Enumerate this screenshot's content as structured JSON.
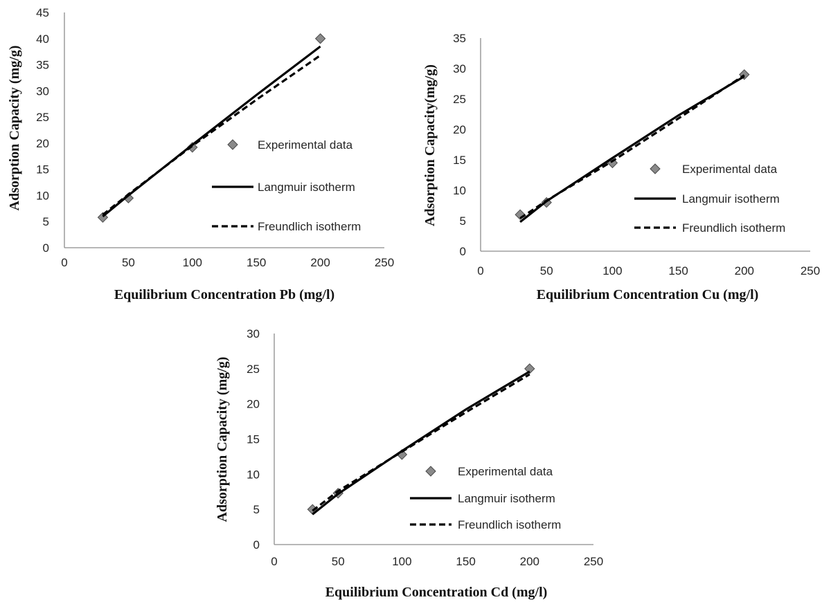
{
  "chart_data": [
    {
      "type": "scatter",
      "xlabel": "Equilibrium Concentration Pb  (mg/l)",
      "ylabel": "Adsorption Capacity (mg/g)",
      "xlim": [
        0,
        250
      ],
      "ylim": [
        0,
        45
      ],
      "xticks": [
        "0",
        "50",
        "100",
        "150",
        "200",
        "250"
      ],
      "yticks": [
        "0",
        "5",
        "10",
        "15",
        "20",
        "25",
        "30",
        "35",
        "40",
        "45"
      ],
      "grid": false,
      "legend_position": "right",
      "series": [
        {
          "name": "Experimental data",
          "kind": "marker",
          "x": [
            30,
            50,
            100,
            200
          ],
          "y": [
            5.8,
            9.5,
            19.2,
            40
          ]
        },
        {
          "name": "Langmuir isotherm",
          "kind": "solid",
          "x": [
            30,
            50,
            100,
            150,
            200
          ],
          "y": [
            6.0,
            10.0,
            19.7,
            29.2,
            38.5
          ]
        },
        {
          "name": "Freundlich isotherm",
          "kind": "dashed",
          "x": [
            30,
            50,
            100,
            150,
            200
          ],
          "y": [
            6.3,
            10.2,
            19.5,
            28.3,
            36.8
          ]
        }
      ]
    },
    {
      "type": "scatter",
      "xlabel": "Equilibrium Concentration Cu (mg/l)",
      "ylabel": "Adsorption Capacity(mg/g)",
      "xlim": [
        0,
        250
      ],
      "ylim": [
        0,
        35
      ],
      "xticks": [
        "0",
        "50",
        "100",
        "150",
        "200",
        "250"
      ],
      "yticks": [
        "0",
        "5",
        "10",
        "15",
        "20",
        "25",
        "30",
        "35"
      ],
      "grid": false,
      "legend_position": "right",
      "series": [
        {
          "name": "Experimental data",
          "kind": "marker",
          "x": [
            30,
            50,
            100,
            200
          ],
          "y": [
            6,
            8,
            14.5,
            29
          ]
        },
        {
          "name": "Langmuir isotherm",
          "kind": "solid",
          "x": [
            30,
            50,
            100,
            150,
            200
          ],
          "y": [
            4.8,
            8.2,
            15.3,
            22.3,
            28.7
          ]
        },
        {
          "name": "Freundlich isotherm",
          "kind": "dashed",
          "x": [
            30,
            50,
            100,
            150,
            200
          ],
          "y": [
            5.4,
            8.3,
            14.8,
            21.8,
            28.9
          ]
        }
      ]
    },
    {
      "type": "scatter",
      "xlabel": "Equilibrium Concentration Cd (mg/l)",
      "ylabel": "Adsorption Capacity  (mg/g)",
      "xlim": [
        0,
        250
      ],
      "ylim": [
        0,
        30
      ],
      "xticks": [
        "0",
        "50",
        "100",
        "150",
        "200",
        "250"
      ],
      "yticks": [
        "0",
        "5",
        "10",
        "15",
        "20",
        "25",
        "30"
      ],
      "grid": false,
      "legend_position": "right",
      "series": [
        {
          "name": "Experimental data",
          "kind": "marker",
          "x": [
            30,
            50,
            100,
            200
          ],
          "y": [
            5,
            7.3,
            12.8,
            25
          ]
        },
        {
          "name": "Langmuir isotherm",
          "kind": "solid",
          "x": [
            30,
            50,
            100,
            150,
            200
          ],
          "y": [
            4.3,
            7.2,
            13.3,
            19.2,
            24.6
          ]
        },
        {
          "name": "Freundlich isotherm",
          "kind": "dashed",
          "x": [
            30,
            50,
            100,
            150,
            200
          ],
          "y": [
            4.8,
            7.6,
            13.2,
            18.8,
            24.2
          ]
        }
      ]
    }
  ]
}
